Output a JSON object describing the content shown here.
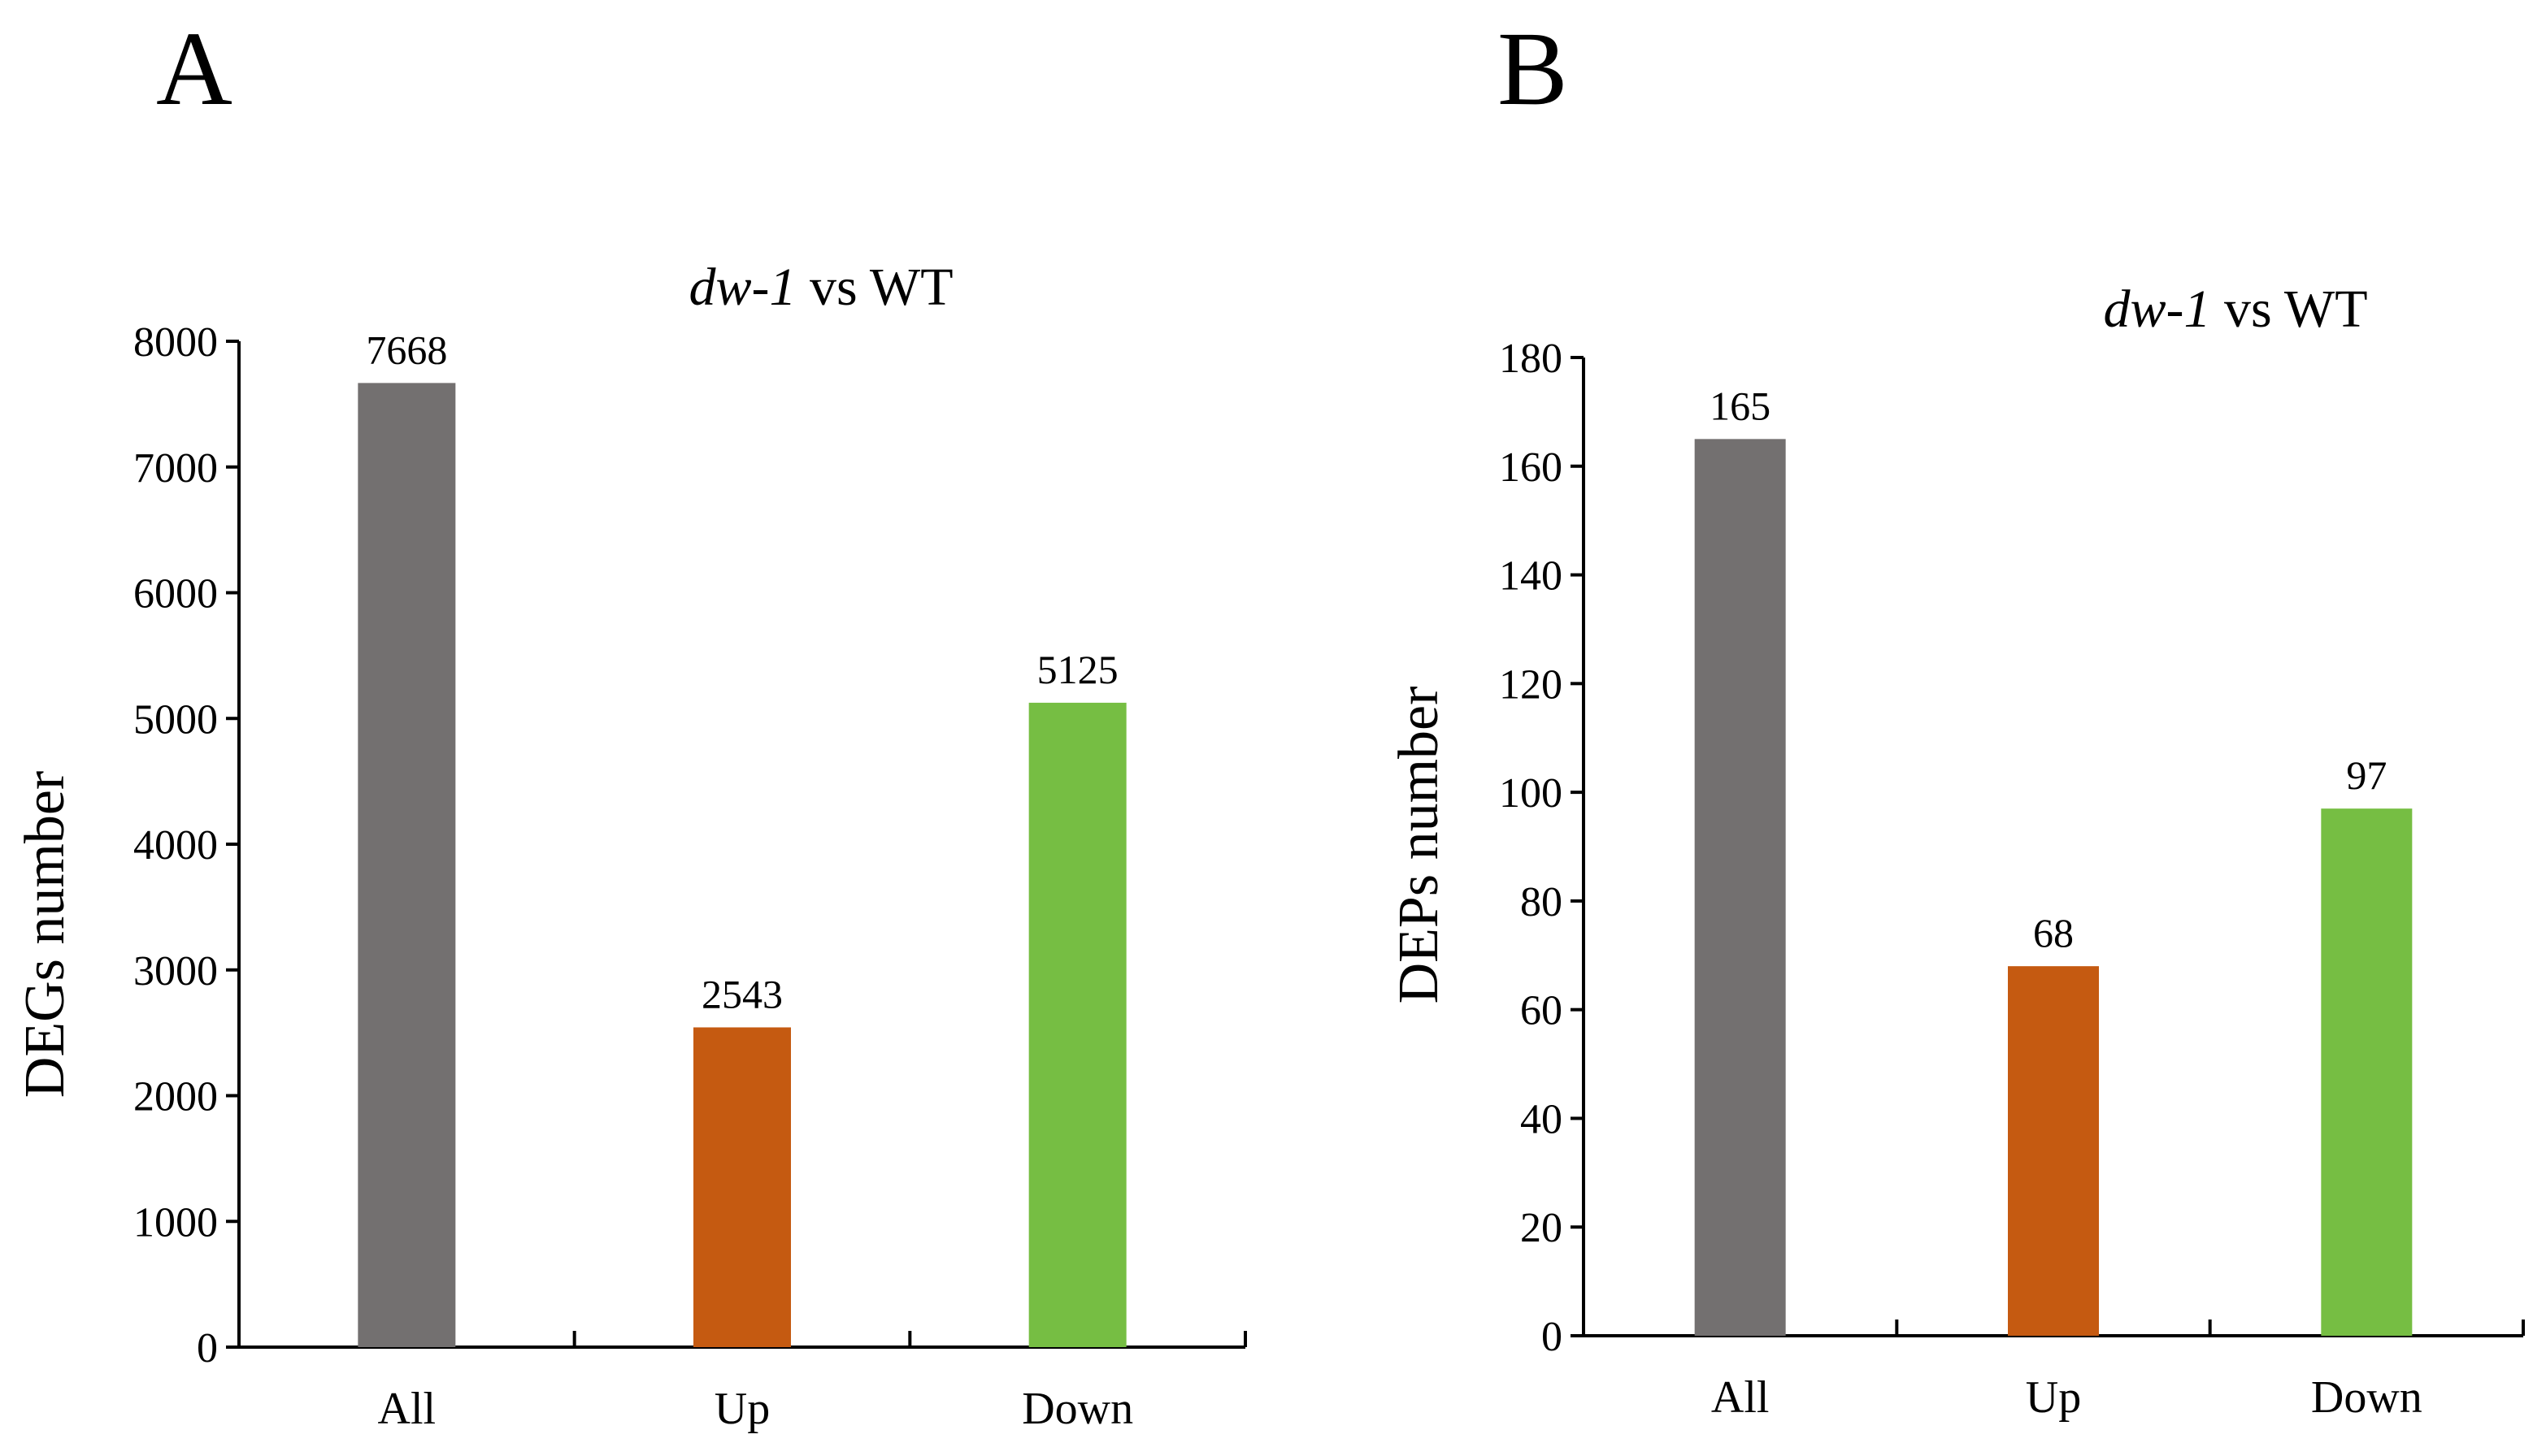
{
  "panels": [
    {
      "letter": "A"
    },
    {
      "letter": "B"
    }
  ],
  "chart_data": [
    {
      "type": "bar",
      "title_italic": "dw-1",
      "title_rest": " vs WT",
      "categories": [
        "All",
        "Up",
        "Down"
      ],
      "values": [
        7668,
        2543,
        5125
      ],
      "value_labels": [
        "7668",
        "2543",
        "5125"
      ],
      "colors": [
        "#737070",
        "#C55A11",
        "#76BE43"
      ],
      "xlabel": "",
      "ylabel": "DEGs number",
      "ylim": [
        0,
        8000
      ],
      "yticks": [
        0,
        1000,
        2000,
        3000,
        4000,
        5000,
        6000,
        7000,
        8000
      ],
      "ytick_labels": [
        "0",
        "1000",
        "2000",
        "3000",
        "4000",
        "5000",
        "6000",
        "7000",
        "8000"
      ],
      "grid": false
    },
    {
      "type": "bar",
      "title_italic": "dw-1",
      "title_rest": " vs WT",
      "categories": [
        "All",
        "Up",
        "Down"
      ],
      "values": [
        165,
        68,
        97
      ],
      "value_labels": [
        "165",
        "68",
        "97"
      ],
      "colors": [
        "#737070",
        "#C55A11",
        "#76BE43"
      ],
      "xlabel": "",
      "ylabel": "DEPs number",
      "ylim": [
        0,
        180
      ],
      "yticks": [
        0,
        20,
        40,
        60,
        80,
        100,
        120,
        140,
        160,
        180
      ],
      "ytick_labels": [
        "0",
        "20",
        "40",
        "60",
        "80",
        "100",
        "120",
        "140",
        "160",
        "180"
      ],
      "grid": false
    }
  ]
}
